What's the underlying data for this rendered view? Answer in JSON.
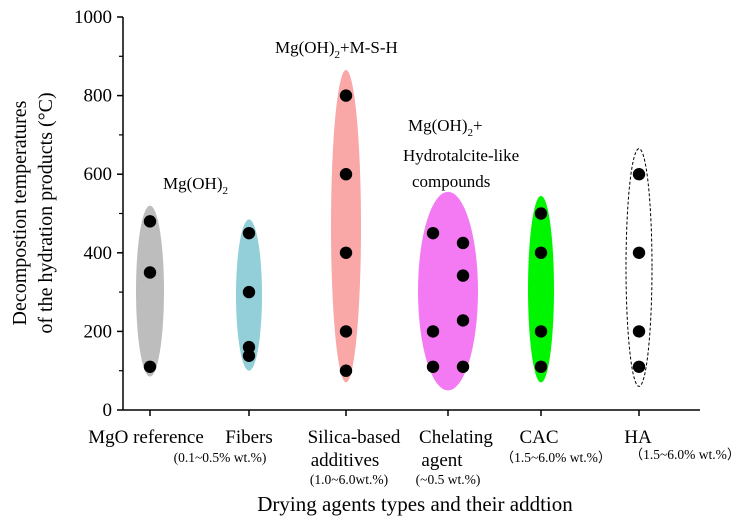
{
  "chart_data": {
    "type": "scatter",
    "title": "",
    "xlabel": "Drying agents types and their addtion",
    "ylabel_line1": "Decompostion temperatures",
    "ylabel_line2": "of the hydration products (°C)",
    "ylim": [
      0,
      1000
    ],
    "yticks": [
      "0",
      "200",
      "400",
      "600",
      "800",
      "1000"
    ],
    "grid": false,
    "categories": [
      {
        "label": "MgO reference",
        "addition": "(0.1~0.5% wt.%)",
        "color": "#bdbdbd",
        "ellipse_range": [
          85,
          520
        ],
        "points": [
          480,
          350,
          110
        ]
      },
      {
        "label": "Fibers",
        "addition": "",
        "color": "#92cfd8",
        "ellipse_range": [
          100,
          485
        ],
        "points": [
          450,
          300,
          160,
          138
        ]
      },
      {
        "label": "Silica-based",
        "label2": "additives",
        "addition": "(1.0~6.0wt.%)",
        "color": "#f9a7a7",
        "ellipse_range": [
          70,
          865
        ],
        "points": [
          800,
          600,
          400,
          200,
          100
        ]
      },
      {
        "label": "Chelating",
        "label2": "agent",
        "addition": "(~0.5 wt.%)",
        "color": "#f47af4",
        "ellipse_range": [
          50,
          555
        ],
        "points_left": [
          450,
          200,
          110
        ],
        "points_right": [
          425,
          342,
          228,
          110
        ]
      },
      {
        "label": "CAC",
        "addition": "（1.5~6.0% wt.%）",
        "color": "#00f500",
        "ellipse_range": [
          70,
          545
        ],
        "points": [
          500,
          400,
          200,
          110
        ]
      },
      {
        "label": "HA",
        "addition": "（1.5~6.0% wt.%）",
        "color": "#ffffff",
        "ellipse_range": [
          60,
          665
        ],
        "points": [
          600,
          400,
          200,
          110
        ]
      }
    ],
    "annotations": [
      {
        "text": "Mg(OH)",
        "sub": "2",
        "after": ""
      },
      {
        "text": "Mg(OH)",
        "sub": "2",
        "after": "+M-S-H"
      },
      {
        "text": "Mg(OH)",
        "sub": "2",
        "after": "+",
        "line2": "Hydrotalcite-like",
        "line3": "compounds"
      }
    ]
  }
}
